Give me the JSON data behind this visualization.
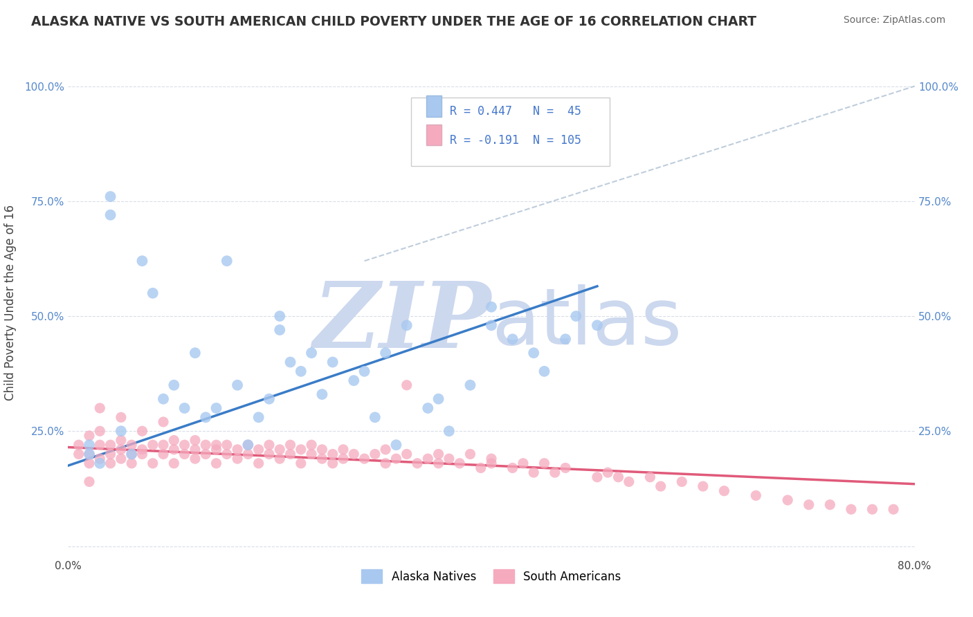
{
  "title": "ALASKA NATIVE VS SOUTH AMERICAN CHILD POVERTY UNDER THE AGE OF 16 CORRELATION CHART",
  "source": "Source: ZipAtlas.com",
  "ylabel": "Child Poverty Under the Age of 16",
  "xlim": [
    0.0,
    0.8
  ],
  "ylim": [
    -0.02,
    1.08
  ],
  "ytick_positions": [
    0.0,
    0.25,
    0.5,
    0.75,
    1.0
  ],
  "ytick_labels_left": [
    "",
    "25.0%",
    "50.0%",
    "75.0%",
    "100.0%"
  ],
  "ytick_labels_right": [
    "",
    "25.0%",
    "50.0%",
    "75.0%",
    "100.0%"
  ],
  "xtick_positions": [
    0.0,
    0.2,
    0.4,
    0.6,
    0.8
  ],
  "xtick_labels": [
    "0.0%",
    "",
    "",
    "",
    "80.0%"
  ],
  "alaska_R": 0.447,
  "alaska_N": 45,
  "south_R": -0.191,
  "south_N": 105,
  "alaska_color": "#a8c8f0",
  "south_color": "#f5aabe",
  "alaska_line_color": "#3a7cc7",
  "south_line_color": "#e05a7a",
  "diag_line_color": "#b8c8d8",
  "background_color": "#ffffff",
  "grid_color": "#d8dde8",
  "watermark_color": "#ccd8ee",
  "alaska_x": [
    0.02,
    0.04,
    0.04,
    0.07,
    0.08,
    0.1,
    0.12,
    0.13,
    0.14,
    0.15,
    0.16,
    0.17,
    0.18,
    0.19,
    0.2,
    0.2,
    0.21,
    0.22,
    0.23,
    0.24,
    0.25,
    0.27,
    0.28,
    0.29,
    0.3,
    0.31,
    0.32,
    0.34,
    0.35,
    0.36,
    0.38,
    0.4,
    0.4,
    0.42,
    0.44,
    0.45,
    0.47,
    0.48,
    0.5,
    0.02,
    0.03,
    0.05,
    0.06,
    0.09,
    0.11
  ],
  "alaska_y": [
    0.2,
    0.76,
    0.72,
    0.62,
    0.55,
    0.35,
    0.42,
    0.28,
    0.3,
    0.62,
    0.35,
    0.22,
    0.28,
    0.32,
    0.47,
    0.5,
    0.4,
    0.38,
    0.42,
    0.33,
    0.4,
    0.36,
    0.38,
    0.28,
    0.42,
    0.22,
    0.48,
    0.3,
    0.32,
    0.25,
    0.35,
    0.52,
    0.48,
    0.45,
    0.42,
    0.38,
    0.45,
    0.5,
    0.48,
    0.22,
    0.18,
    0.25,
    0.2,
    0.32,
    0.3
  ],
  "south_x": [
    0.01,
    0.01,
    0.02,
    0.02,
    0.02,
    0.03,
    0.03,
    0.03,
    0.04,
    0.04,
    0.04,
    0.05,
    0.05,
    0.05,
    0.06,
    0.06,
    0.06,
    0.07,
    0.07,
    0.08,
    0.08,
    0.09,
    0.09,
    0.1,
    0.1,
    0.1,
    0.11,
    0.11,
    0.12,
    0.12,
    0.12,
    0.13,
    0.13,
    0.14,
    0.14,
    0.15,
    0.15,
    0.16,
    0.16,
    0.17,
    0.17,
    0.18,
    0.18,
    0.19,
    0.19,
    0.2,
    0.2,
    0.21,
    0.21,
    0.22,
    0.22,
    0.23,
    0.23,
    0.24,
    0.24,
    0.25,
    0.25,
    0.26,
    0.26,
    0.27,
    0.28,
    0.29,
    0.3,
    0.3,
    0.31,
    0.32,
    0.33,
    0.34,
    0.35,
    0.35,
    0.36,
    0.37,
    0.38,
    0.39,
    0.4,
    0.4,
    0.42,
    0.43,
    0.44,
    0.45,
    0.46,
    0.47,
    0.5,
    0.51,
    0.52,
    0.53,
    0.55,
    0.56,
    0.58,
    0.6,
    0.62,
    0.65,
    0.68,
    0.7,
    0.72,
    0.74,
    0.76,
    0.78,
    0.02,
    0.03,
    0.05,
    0.07,
    0.09,
    0.14,
    0.32
  ],
  "south_y": [
    0.2,
    0.22,
    0.18,
    0.2,
    0.24,
    0.19,
    0.22,
    0.25,
    0.2,
    0.18,
    0.22,
    0.19,
    0.21,
    0.23,
    0.2,
    0.18,
    0.22,
    0.21,
    0.2,
    0.22,
    0.18,
    0.2,
    0.22,
    0.21,
    0.18,
    0.23,
    0.2,
    0.22,
    0.19,
    0.21,
    0.23,
    0.2,
    0.22,
    0.18,
    0.21,
    0.2,
    0.22,
    0.19,
    0.21,
    0.2,
    0.22,
    0.18,
    0.21,
    0.2,
    0.22,
    0.19,
    0.21,
    0.2,
    0.22,
    0.18,
    0.21,
    0.2,
    0.22,
    0.19,
    0.21,
    0.2,
    0.18,
    0.21,
    0.19,
    0.2,
    0.19,
    0.2,
    0.18,
    0.21,
    0.19,
    0.2,
    0.18,
    0.19,
    0.2,
    0.18,
    0.19,
    0.18,
    0.2,
    0.17,
    0.18,
    0.19,
    0.17,
    0.18,
    0.16,
    0.18,
    0.16,
    0.17,
    0.15,
    0.16,
    0.15,
    0.14,
    0.15,
    0.13,
    0.14,
    0.13,
    0.12,
    0.11,
    0.1,
    0.09,
    0.09,
    0.08,
    0.08,
    0.08,
    0.14,
    0.3,
    0.28,
    0.25,
    0.27,
    0.22,
    0.35
  ],
  "alaska_line_x": [
    0.0,
    0.5
  ],
  "alaska_line_y": [
    0.175,
    0.565
  ],
  "south_line_x": [
    0.0,
    0.8
  ],
  "south_line_y": [
    0.215,
    0.135
  ],
  "diag_line_x": [
    0.28,
    0.8
  ],
  "diag_line_y": [
    0.62,
    1.0
  ]
}
